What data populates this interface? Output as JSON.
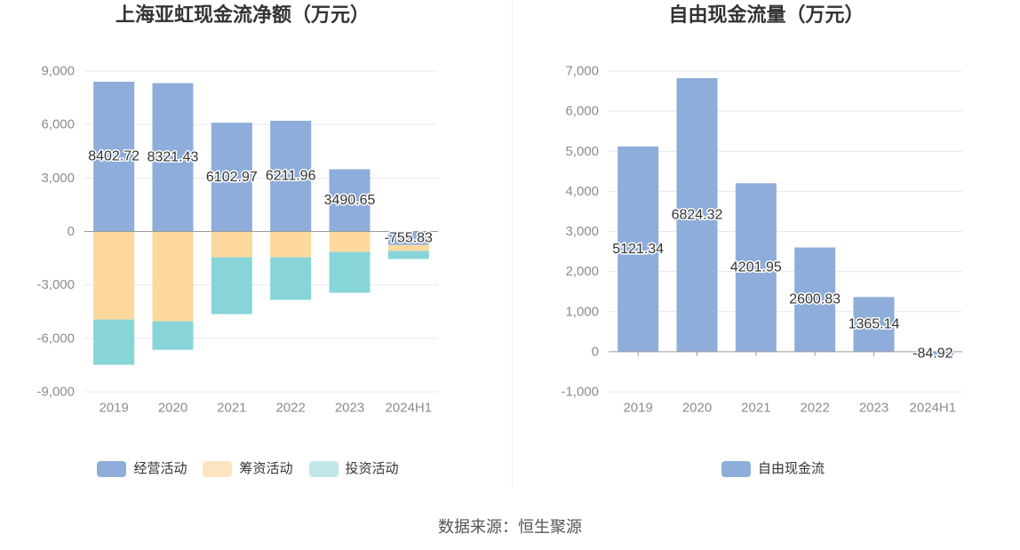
{
  "source": {
    "label": "数据来源：恒生聚源"
  },
  "chart_data": [
    {
      "type": "bar",
      "stacked": true,
      "title": "上海亚虹现金流净额（万元）",
      "categories": [
        "2019",
        "2020",
        "2021",
        "2022",
        "2023",
        "2024H1"
      ],
      "series": [
        {
          "name": "经营活动",
          "values": [
            8402.72,
            8321.43,
            6102.97,
            6211.96,
            3490.65,
            -755.83
          ],
          "color": "#8eaddb",
          "legend_color": "#8eaddb",
          "show_labels": true
        },
        {
          "name": "筹资活动",
          "values": [
            -4940,
            -5040,
            -1450,
            -1450,
            -1150,
            -340
          ],
          "color": "#fed99d",
          "legend_color": "#fde4c1",
          "show_labels": false
        },
        {
          "name": "投资活动",
          "values": [
            -2540,
            -1600,
            -3190,
            -2390,
            -2290,
            -450
          ],
          "color": "#87d5d9",
          "legend_color": "#c0e8eb",
          "show_labels": false
        }
      ],
      "ylim": [
        -9000,
        9000
      ],
      "yticks": [
        9000,
        6000,
        3000,
        0,
        -3000,
        -6000,
        -9000
      ],
      "ytick_labels": [
        "9,000",
        "6,000",
        "3,000",
        "0",
        "-3,000",
        "-6,000",
        "-9,000"
      ],
      "xlabel": "",
      "ylabel": "",
      "grid": true,
      "legend": "bottom"
    },
    {
      "type": "bar",
      "stacked": false,
      "title": "自由现金流量（万元）",
      "categories": [
        "2019",
        "2020",
        "2021",
        "2022",
        "2023",
        "2024H1"
      ],
      "series": [
        {
          "name": "自由现金流",
          "values": [
            5121.34,
            6824.32,
            4201.95,
            2600.83,
            1365.14,
            -84.92
          ],
          "color": "#8eaddb",
          "legend_color": "#8eaddb",
          "show_labels": true
        }
      ],
      "ylim": [
        -1000,
        7000
      ],
      "yticks": [
        7000,
        6000,
        5000,
        4000,
        3000,
        2000,
        1000,
        0,
        -1000
      ],
      "ytick_labels": [
        "7,000",
        "6,000",
        "5,000",
        "4,000",
        "3,000",
        "2,000",
        "1,000",
        "0",
        "-1,000"
      ],
      "xlabel": "",
      "ylabel": "",
      "grid": true,
      "legend": "bottom"
    }
  ]
}
